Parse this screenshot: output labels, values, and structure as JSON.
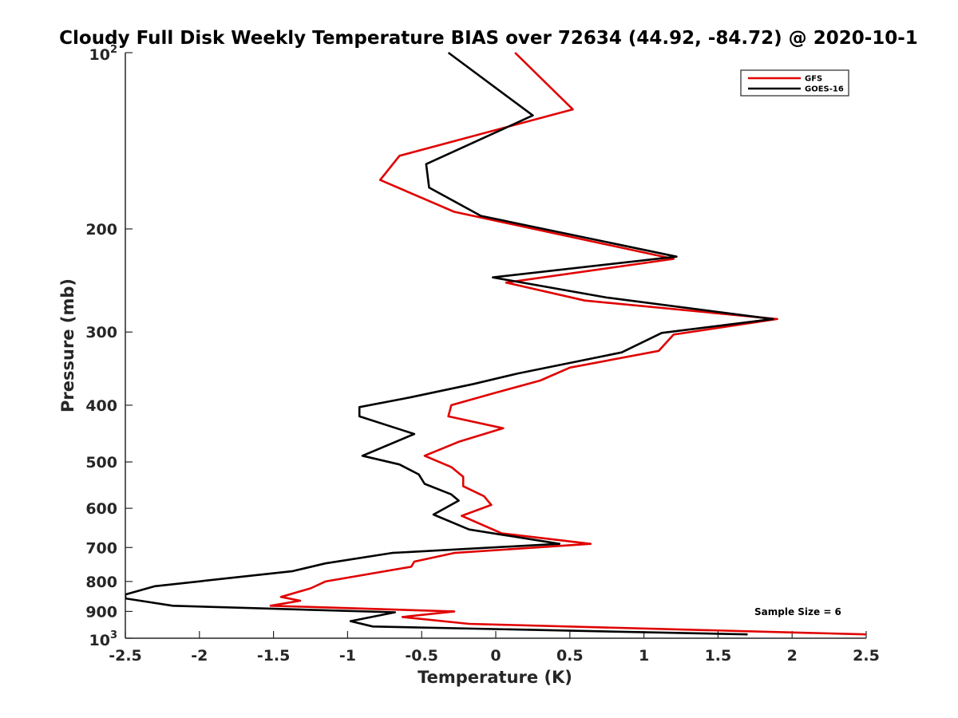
{
  "chart_data": {
    "type": "line",
    "title": "Cloudy Full Disk Weekly Temperature BIAS over 72634 (44.92, -84.72) @ 2020-10-1",
    "xlabel": "Temperature (K)",
    "ylabel": "Pressure (mb)",
    "xlim": [
      -2.5,
      2.5
    ],
    "ylim": [
      100,
      1000
    ],
    "y_scale": "log",
    "y_reversed": true,
    "x_ticks": [
      "-2.5",
      "-2",
      "-1.5",
      "-1",
      "-0.5",
      "0",
      "0.5",
      "1",
      "1.5",
      "2",
      "2.5"
    ],
    "y_ticks": [
      {
        "value": 100,
        "base": "10",
        "exp": "2"
      },
      {
        "value": 200,
        "label": "200"
      },
      {
        "value": 300,
        "label": "300"
      },
      {
        "value": 400,
        "label": "400"
      },
      {
        "value": 500,
        "label": "500"
      },
      {
        "value": 600,
        "label": "600"
      },
      {
        "value": 700,
        "label": "700"
      },
      {
        "value": 800,
        "label": "800"
      },
      {
        "value": 900,
        "label": "900"
      },
      {
        "value": 1000,
        "base": "10",
        "exp": "3"
      }
    ],
    "grid": false,
    "legend_position": "top-right",
    "annotation": "Sample Size = 6",
    "series": [
      {
        "name": "GFS",
        "color": "#e00000",
        "points": [
          [
            0.13,
            100
          ],
          [
            0.52,
            125
          ],
          [
            -0.65,
            150
          ],
          [
            -0.78,
            165
          ],
          [
            -0.28,
            187
          ],
          [
            1.2,
            225
          ],
          [
            0.07,
            247
          ],
          [
            0.6,
            265
          ],
          [
            1.9,
            285
          ],
          [
            1.2,
            303
          ],
          [
            1.1,
            323
          ],
          [
            0.5,
            345
          ],
          [
            0.3,
            363
          ],
          [
            -0.02,
            382
          ],
          [
            -0.3,
            400
          ],
          [
            -0.32,
            418
          ],
          [
            0.05,
            438
          ],
          [
            -0.25,
            462
          ],
          [
            -0.48,
            488
          ],
          [
            -0.3,
            510
          ],
          [
            -0.22,
            530
          ],
          [
            -0.22,
            550
          ],
          [
            -0.08,
            572
          ],
          [
            -0.03,
            592
          ],
          [
            -0.23,
            618
          ],
          [
            0.04,
            662
          ],
          [
            0.64,
            690
          ],
          [
            -0.28,
            715
          ],
          [
            -0.55,
            740
          ],
          [
            -0.57,
            755
          ],
          [
            -1.15,
            800
          ],
          [
            -1.25,
            822
          ],
          [
            -1.45,
            850
          ],
          [
            -1.32,
            863
          ],
          [
            -1.52,
            880
          ],
          [
            -0.28,
            900
          ],
          [
            -0.63,
            920
          ],
          [
            -0.18,
            945
          ],
          [
            2.5,
            985
          ]
        ]
      },
      {
        "name": "GOES-16",
        "color": "#000000",
        "points": [
          [
            -0.32,
            100
          ],
          [
            0.25,
            128
          ],
          [
            -0.47,
            155
          ],
          [
            -0.45,
            170
          ],
          [
            -0.1,
            190
          ],
          [
            1.22,
            223
          ],
          [
            -0.02,
            242
          ],
          [
            0.75,
            262
          ],
          [
            1.87,
            285
          ],
          [
            1.12,
            301
          ],
          [
            0.85,
            325
          ],
          [
            0.15,
            353
          ],
          [
            -0.15,
            368
          ],
          [
            -0.58,
            388
          ],
          [
            -0.92,
            403
          ],
          [
            -0.92,
            418
          ],
          [
            -0.55,
            448
          ],
          [
            -0.9,
            488
          ],
          [
            -0.65,
            505
          ],
          [
            -0.52,
            525
          ],
          [
            -0.48,
            545
          ],
          [
            -0.3,
            568
          ],
          [
            -0.25,
            582
          ],
          [
            -0.42,
            615
          ],
          [
            -0.18,
            652
          ],
          [
            0.43,
            690
          ],
          [
            -0.7,
            715
          ],
          [
            -1.15,
            745
          ],
          [
            -1.37,
            768
          ],
          [
            -2.3,
            815
          ],
          [
            -2.5,
            842
          ],
          [
            -2.5,
            855
          ],
          [
            -2.18,
            880
          ],
          [
            -0.68,
            903
          ],
          [
            -0.98,
            935
          ],
          [
            -0.83,
            955
          ],
          [
            1.7,
            985
          ]
        ]
      }
    ]
  }
}
